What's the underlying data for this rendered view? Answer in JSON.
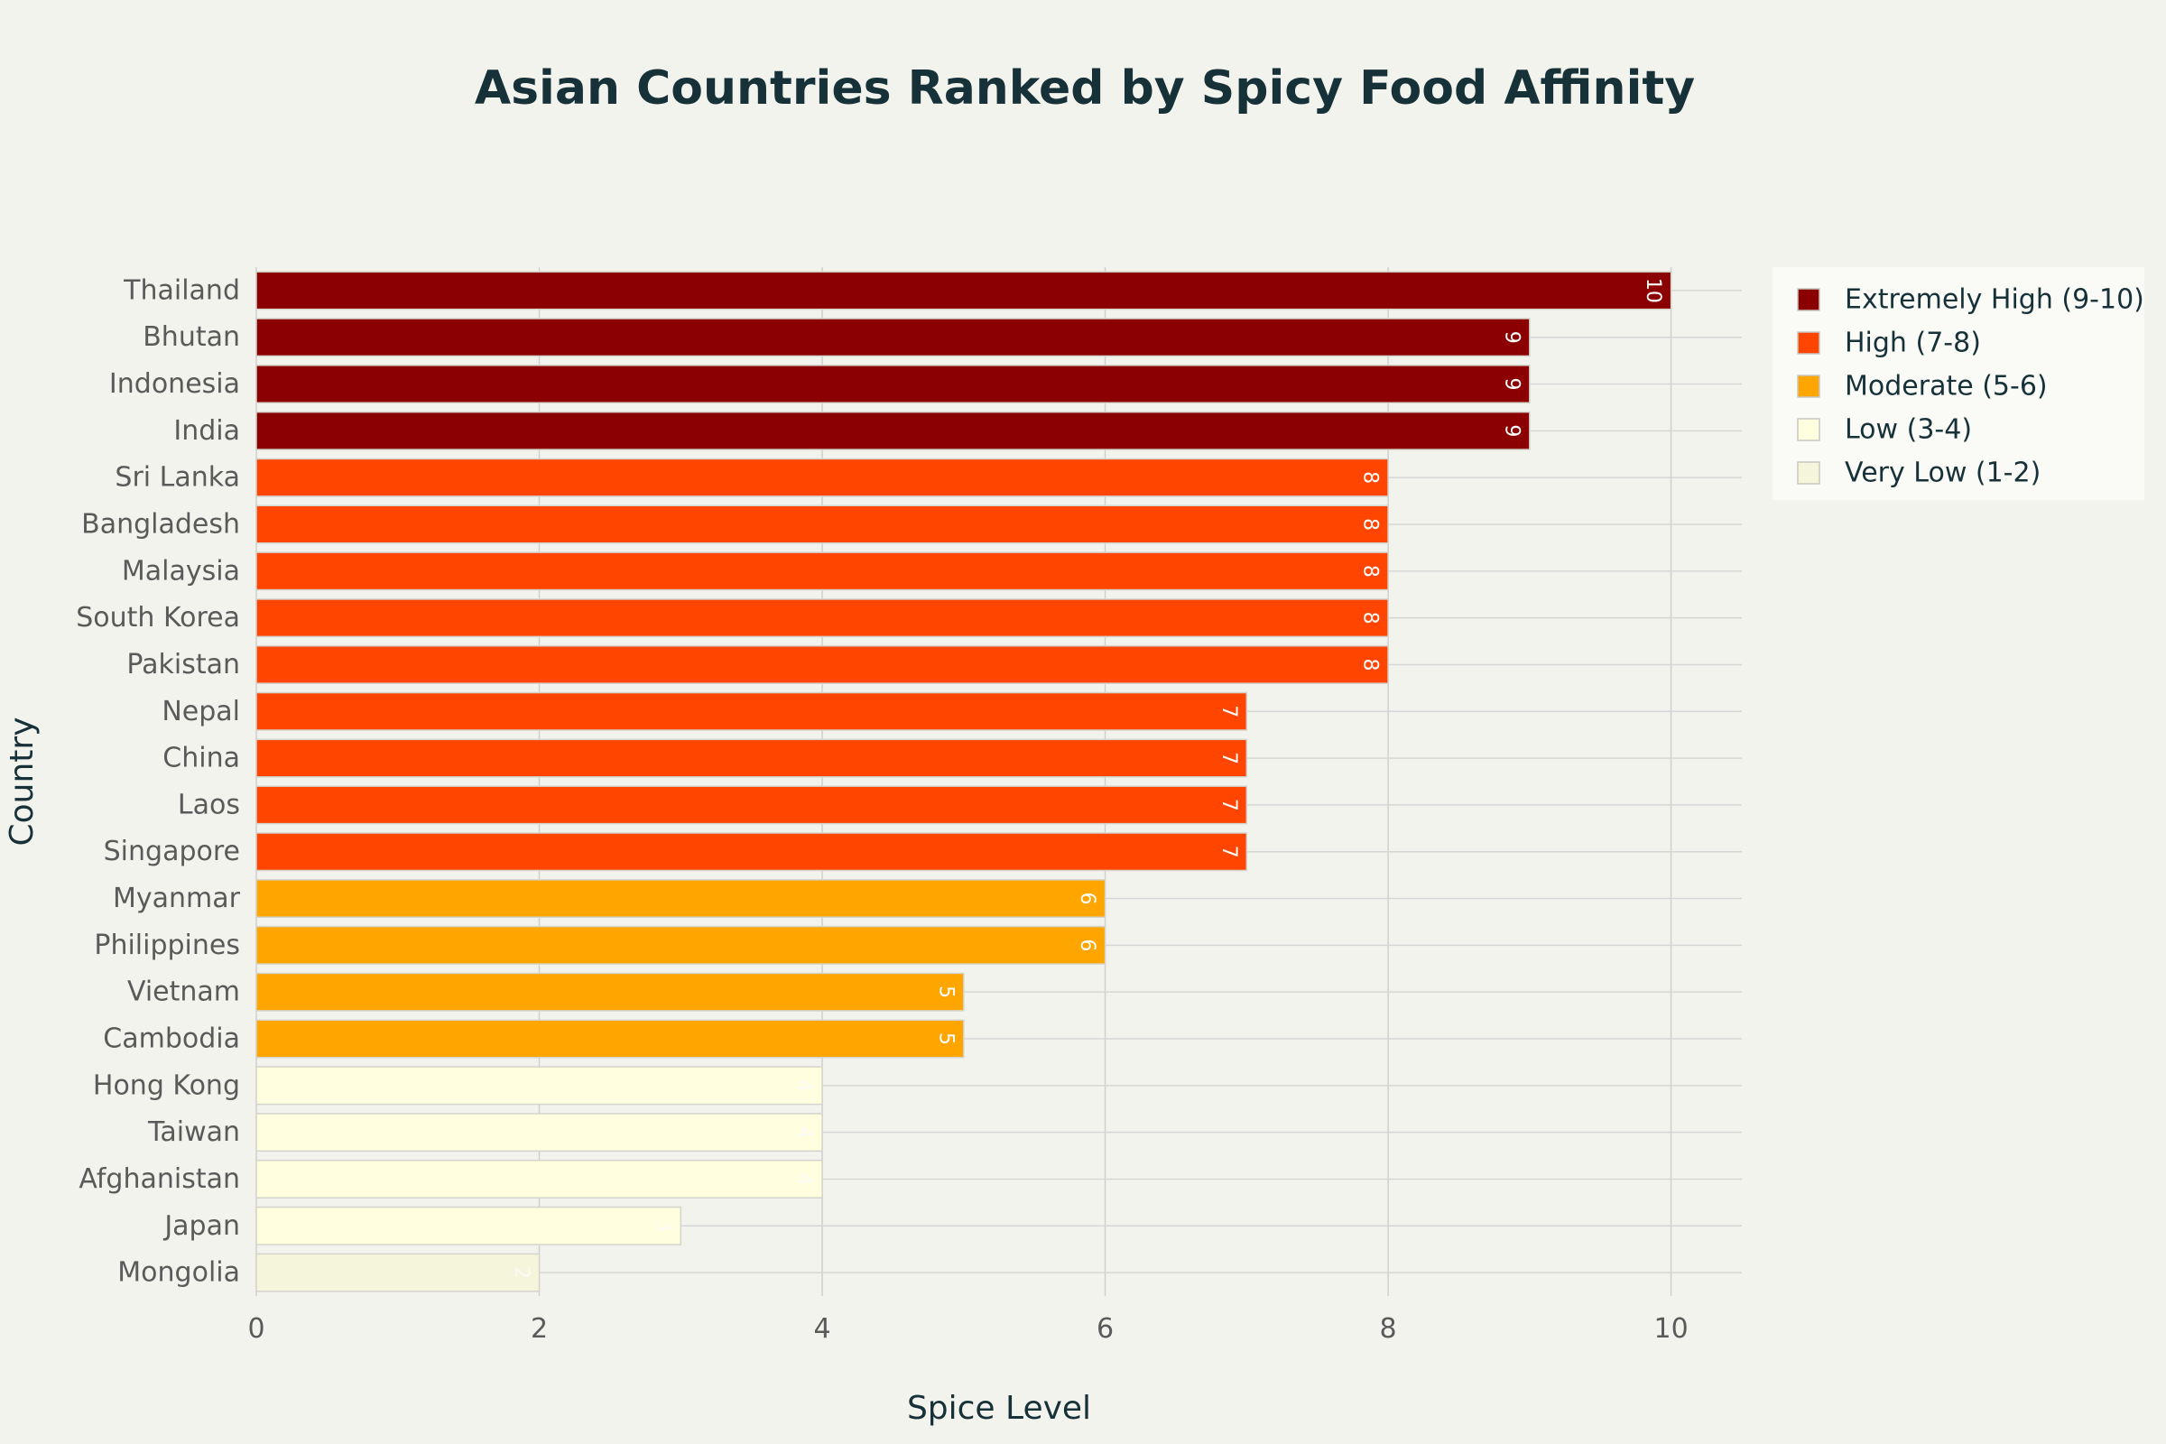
{
  "chart_data": {
    "type": "bar",
    "orientation": "horizontal",
    "title": "Asian Countries Ranked by Spicy Food Affinity",
    "xlabel": "Spice Level",
    "ylabel": "Country",
    "xlim": [
      0,
      10.5
    ],
    "x_ticks": [
      0,
      2,
      4,
      6,
      8,
      10
    ],
    "grid": true,
    "legend_position": "top-right",
    "categories": [
      "Thailand",
      "Bhutan",
      "Indonesia",
      "India",
      "Sri Lanka",
      "Bangladesh",
      "Malaysia",
      "South Korea",
      "Pakistan",
      "Nepal",
      "China",
      "Laos",
      "Singapore",
      "Myanmar",
      "Philippines",
      "Vietnam",
      "Cambodia",
      "Hong Kong",
      "Taiwan",
      "Afghanistan",
      "Japan",
      "Mongolia"
    ],
    "values": [
      10,
      9,
      9,
      9,
      8,
      8,
      8,
      8,
      8,
      7,
      7,
      7,
      7,
      6,
      6,
      5,
      5,
      4,
      4,
      4,
      3,
      2
    ],
    "categories_level": [
      "Extremely High (9-10)",
      "Extremely High (9-10)",
      "Extremely High (9-10)",
      "Extremely High (9-10)",
      "High (7-8)",
      "High (7-8)",
      "High (7-8)",
      "High (7-8)",
      "High (7-8)",
      "High (7-8)",
      "High (7-8)",
      "High (7-8)",
      "High (7-8)",
      "Moderate (5-6)",
      "Moderate (5-6)",
      "Moderate (5-6)",
      "Moderate (5-6)",
      "Low (3-4)",
      "Low (3-4)",
      "Low (3-4)",
      "Low (3-4)",
      "Very Low (1-2)"
    ],
    "legend": [
      {
        "name": "Extremely High (9-10)",
        "color": "#8b0000"
      },
      {
        "name": "High (7-8)",
        "color": "#ff4500"
      },
      {
        "name": "Moderate (5-6)",
        "color": "#ffa500"
      },
      {
        "name": "Low (3-4)",
        "color": "#ffffe0"
      },
      {
        "name": "Very Low (1-2)",
        "color": "#f5f5dc"
      }
    ]
  }
}
